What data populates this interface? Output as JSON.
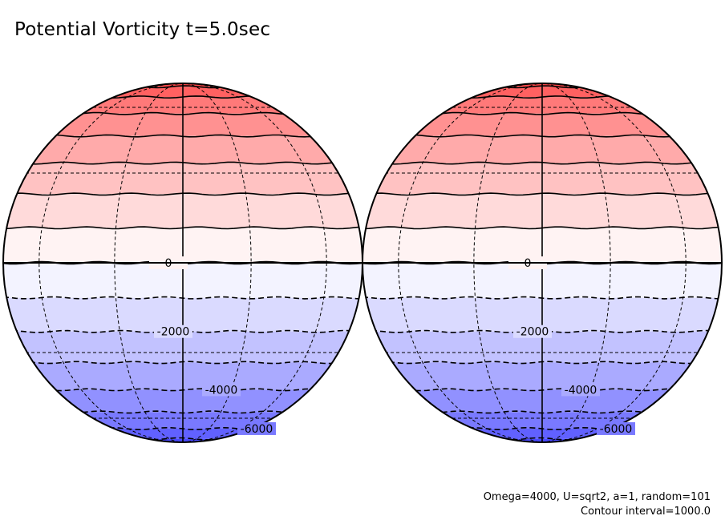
{
  "title": "Potential Vorticity t=5.0sec",
  "footnotes": {
    "params": "Omega=4000, U=sqrt2, a=1, random=101",
    "contour": "Contour interval=1000.0"
  },
  "colors": {
    "positive": "#ff3c3c",
    "zero": "#ffffff",
    "negative": "#3c3cff"
  },
  "chart_data": {
    "type": "contour",
    "projection": "orthographic, two hemispheres side by side",
    "field": "potential vorticity",
    "contour_interval": 1000.0,
    "value_range": [
      -8000,
      8000
    ],
    "contour_levels": [
      -8000,
      -7000,
      -6000,
      -5000,
      -4000,
      -3000,
      -2000,
      -1000,
      0,
      1000,
      2000,
      3000,
      4000,
      5000,
      6000,
      7000,
      8000
    ],
    "negative_contours": "dashed",
    "positive_contours": "solid",
    "contour_labels": [
      "0",
      "-2000",
      "-4000",
      "-6000"
    ],
    "graticule": "dashed"
  }
}
